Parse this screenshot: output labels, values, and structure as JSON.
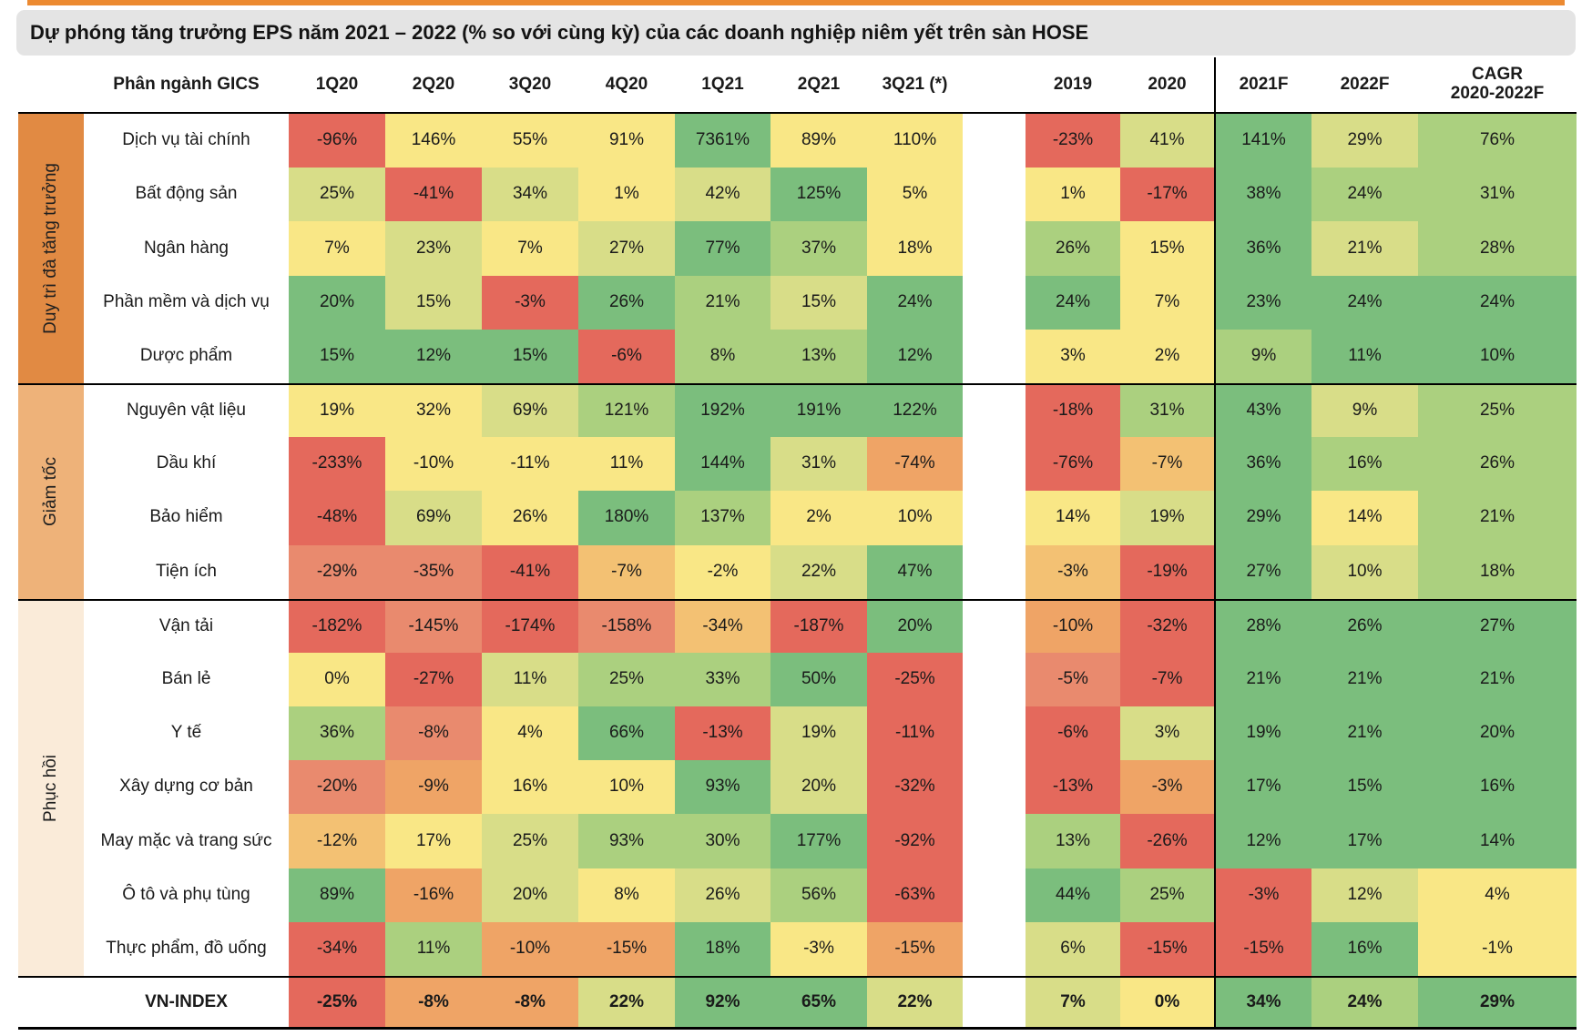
{
  "page": {
    "accent_bar_color": "#ec8a31",
    "title_background": "#e4e4e4"
  },
  "chart_data": {
    "type": "heatmap",
    "title": "Dự phóng tăng trưởng EPS năm 2021 – 2022 (% so với cùng kỳ) của các doanh nghiệp niêm yết trên sàn HOSE",
    "header_label": "Phân ngành GICS",
    "columns": [
      {
        "label": "1Q20"
      },
      {
        "label": "2Q20"
      },
      {
        "label": "3Q20"
      },
      {
        "label": "4Q20"
      },
      {
        "label": "1Q21"
      },
      {
        "label": "2Q21"
      },
      {
        "label": "3Q21 (*)"
      },
      {
        "label": "2019"
      },
      {
        "label": "2020"
      },
      {
        "label": "2021F"
      },
      {
        "label": "2022F"
      },
      {
        "label": "CAGR",
        "sub": "2020-2022F"
      }
    ],
    "palette": {
      "R": "#e4695c",
      "RS": "#e98a6e",
      "O": "#efa466",
      "OY": "#f3c173",
      "Y": "#f9e786",
      "YG": "#d8dd88",
      "LG": "#abd07f",
      "G": "#7bbe7d"
    },
    "groups": [
      {
        "label": "Duy trì đà tăng trưởng",
        "color": "#e18a43",
        "rows": [
          {
            "label": "Dịch vụ tài chính",
            "values": [
              "-96%",
              "146%",
              "55%",
              "91%",
              "7361%",
              "89%",
              "110%",
              "-23%",
              "41%",
              "141%",
              "29%",
              "76%"
            ],
            "colors": [
              "R",
              "Y",
              "Y",
              "Y",
              "G",
              "Y",
              "Y",
              "R",
              "YG",
              "G",
              "YG",
              "LG"
            ]
          },
          {
            "label": "Bất động sản",
            "values": [
              "25%",
              "-41%",
              "34%",
              "1%",
              "42%",
              "125%",
              "5%",
              "1%",
              "-17%",
              "38%",
              "24%",
              "31%"
            ],
            "colors": [
              "YG",
              "R",
              "YG",
              "Y",
              "YG",
              "G",
              "Y",
              "Y",
              "R",
              "G",
              "LG",
              "LG"
            ]
          },
          {
            "label": "Ngân hàng",
            "values": [
              "7%",
              "23%",
              "7%",
              "27%",
              "77%",
              "37%",
              "18%",
              "26%",
              "15%",
              "36%",
              "21%",
              "28%"
            ],
            "colors": [
              "Y",
              "YG",
              "Y",
              "YG",
              "G",
              "LG",
              "Y",
              "LG",
              "Y",
              "G",
              "YG",
              "LG"
            ]
          },
          {
            "label": "Phần mềm và dịch vụ",
            "values": [
              "20%",
              "15%",
              "-3%",
              "26%",
              "21%",
              "15%",
              "24%",
              "24%",
              "7%",
              "23%",
              "24%",
              "24%"
            ],
            "colors": [
              "G",
              "YG",
              "R",
              "G",
              "LG",
              "YG",
              "G",
              "G",
              "Y",
              "G",
              "G",
              "G"
            ]
          },
          {
            "label": "Dược phẩm",
            "values": [
              "15%",
              "12%",
              "15%",
              "-6%",
              "8%",
              "13%",
              "12%",
              "3%",
              "2%",
              "9%",
              "11%",
              "10%"
            ],
            "colors": [
              "G",
              "G",
              "G",
              "R",
              "LG",
              "LG",
              "G",
              "Y",
              "Y",
              "LG",
              "G",
              "G"
            ]
          }
        ]
      },
      {
        "label": "Giảm tốc",
        "color": "#eeb279",
        "rows": [
          {
            "label": "Nguyên vật liệu",
            "values": [
              "19%",
              "32%",
              "69%",
              "121%",
              "192%",
              "191%",
              "122%",
              "-18%",
              "31%",
              "43%",
              "9%",
              "25%"
            ],
            "colors": [
              "Y",
              "Y",
              "YG",
              "LG",
              "G",
              "G",
              "G",
              "R",
              "LG",
              "G",
              "YG",
              "LG"
            ]
          },
          {
            "label": "Dầu khí",
            "values": [
              "-233%",
              "-10%",
              "-11%",
              "11%",
              "144%",
              "31%",
              "-74%",
              "-76%",
              "-7%",
              "36%",
              "16%",
              "26%"
            ],
            "colors": [
              "R",
              "Y",
              "Y",
              "Y",
              "G",
              "YG",
              "O",
              "R",
              "OY",
              "G",
              "LG",
              "LG"
            ]
          },
          {
            "label": "Bảo hiểm",
            "values": [
              "-48%",
              "69%",
              "26%",
              "180%",
              "137%",
              "2%",
              "10%",
              "14%",
              "19%",
              "29%",
              "14%",
              "21%"
            ],
            "colors": [
              "R",
              "YG",
              "Y",
              "G",
              "LG",
              "Y",
              "Y",
              "Y",
              "YG",
              "G",
              "Y",
              "LG"
            ]
          },
          {
            "label": "Tiện ích",
            "values": [
              "-29%",
              "-35%",
              "-41%",
              "-7%",
              "-2%",
              "22%",
              "47%",
              "-3%",
              "-19%",
              "27%",
              "10%",
              "18%"
            ],
            "colors": [
              "RS",
              "RS",
              "R",
              "OY",
              "Y",
              "YG",
              "G",
              "OY",
              "R",
              "G",
              "YG",
              "LG"
            ]
          }
        ]
      },
      {
        "label": "Phục hồi",
        "color": "#faebd9",
        "rows": [
          {
            "label": "Vận tải",
            "values": [
              "-182%",
              "-145%",
              "-174%",
              "-158%",
              "-34%",
              "-187%",
              "20%",
              "-10%",
              "-32%",
              "28%",
              "26%",
              "27%"
            ],
            "colors": [
              "R",
              "RS",
              "R",
              "RS",
              "OY",
              "R",
              "G",
              "O",
              "R",
              "G",
              "G",
              "G"
            ]
          },
          {
            "label": "Bán lẻ",
            "values": [
              "0%",
              "-27%",
              "11%",
              "25%",
              "33%",
              "50%",
              "-25%",
              "-5%",
              "-7%",
              "21%",
              "21%",
              "21%"
            ],
            "colors": [
              "Y",
              "R",
              "YG",
              "LG",
              "LG",
              "G",
              "R",
              "RS",
              "R",
              "G",
              "G",
              "G"
            ]
          },
          {
            "label": "Y tế",
            "values": [
              "36%",
              "-8%",
              "4%",
              "66%",
              "-13%",
              "19%",
              "-11%",
              "-6%",
              "3%",
              "19%",
              "21%",
              "20%"
            ],
            "colors": [
              "LG",
              "RS",
              "Y",
              "G",
              "R",
              "YG",
              "R",
              "R",
              "YG",
              "G",
              "G",
              "G"
            ]
          },
          {
            "label": "Xây dựng cơ bản",
            "values": [
              "-20%",
              "-9%",
              "16%",
              "10%",
              "93%",
              "20%",
              "-32%",
              "-13%",
              "-3%",
              "17%",
              "15%",
              "16%"
            ],
            "colors": [
              "RS",
              "O",
              "Y",
              "Y",
              "G",
              "YG",
              "R",
              "R",
              "O",
              "G",
              "G",
              "G"
            ]
          },
          {
            "label": "May mặc và trang sức",
            "values": [
              "-12%",
              "17%",
              "25%",
              "93%",
              "30%",
              "177%",
              "-92%",
              "13%",
              "-26%",
              "12%",
              "17%",
              "14%"
            ],
            "colors": [
              "OY",
              "Y",
              "YG",
              "LG",
              "LG",
              "G",
              "R",
              "LG",
              "R",
              "G",
              "G",
              "G"
            ]
          },
          {
            "label": "Ô tô và phụ tùng",
            "values": [
              "89%",
              "-16%",
              "20%",
              "8%",
              "26%",
              "56%",
              "-63%",
              "44%",
              "25%",
              "-3%",
              "12%",
              "4%"
            ],
            "colors": [
              "G",
              "O",
              "YG",
              "Y",
              "YG",
              "LG",
              "R",
              "G",
              "LG",
              "R",
              "YG",
              "Y"
            ]
          },
          {
            "label": "Thực phẩm, đồ uống",
            "values": [
              "-34%",
              "11%",
              "-10%",
              "-15%",
              "18%",
              "-3%",
              "-15%",
              "6%",
              "-15%",
              "-15%",
              "16%",
              "-1%"
            ],
            "colors": [
              "R",
              "LG",
              "O",
              "O",
              "G",
              "Y",
              "O",
              "YG",
              "R",
              "R",
              "G",
              "Y"
            ]
          }
        ]
      }
    ],
    "footer_row": {
      "label": "VN-INDEX",
      "values": [
        "-25%",
        "-8%",
        "-8%",
        "22%",
        "92%",
        "65%",
        "22%",
        "7%",
        "0%",
        "34%",
        "24%",
        "29%"
      ],
      "colors": [
        "R",
        "O",
        "O",
        "YG",
        "G",
        "G",
        "YG",
        "YG",
        "Y",
        "G",
        "LG",
        "G"
      ]
    }
  }
}
